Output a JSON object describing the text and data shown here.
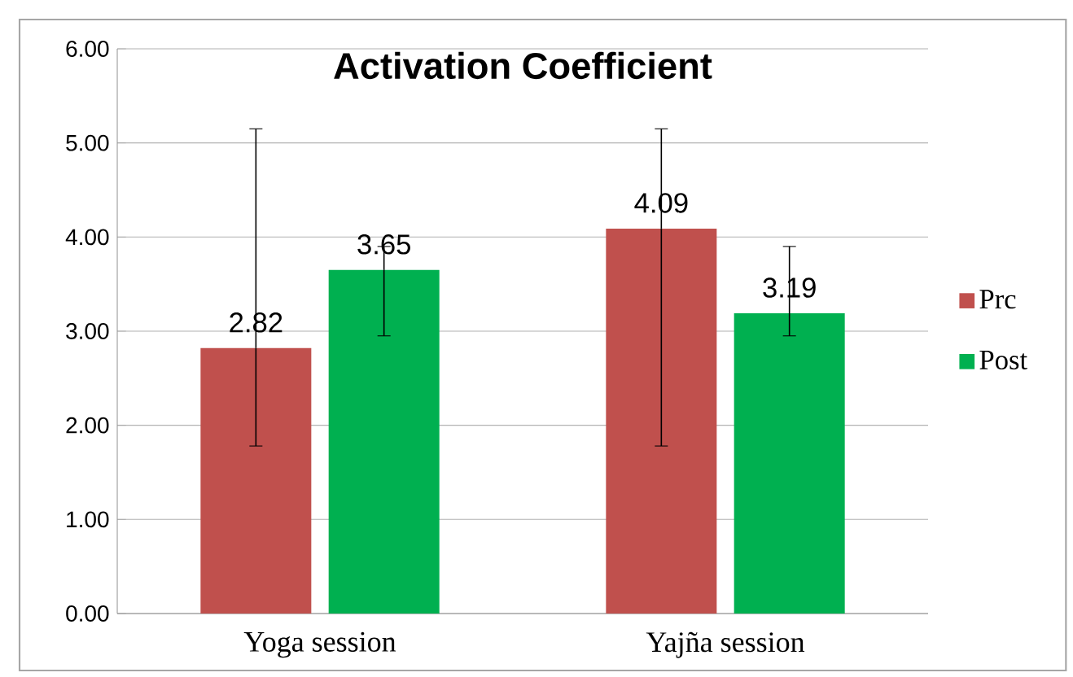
{
  "chart_data": {
    "type": "bar",
    "title": "Activation Coefficient",
    "categories": [
      "Yoga session",
      "Yajña session"
    ],
    "series": [
      {
        "name": "Prc",
        "color": "#c0504d",
        "values": [
          2.82,
          4.09
        ],
        "errors": [
          [
            1.78,
            5.15
          ],
          [
            1.78,
            5.15
          ]
        ]
      },
      {
        "name": "Post",
        "color": "#00b050",
        "values": [
          3.65,
          3.19
        ],
        "errors": [
          [
            2.95,
            3.9
          ],
          [
            2.95,
            3.9
          ]
        ]
      }
    ],
    "ylim": [
      0,
      6
    ],
    "yticks": [
      {
        "value": 0,
        "label": "0.00"
      },
      {
        "value": 1,
        "label": "1.00"
      },
      {
        "value": 2,
        "label": "2.00"
      },
      {
        "value": 3,
        "label": "3.00"
      },
      {
        "value": 4,
        "label": "4.00"
      },
      {
        "value": 5,
        "label": "5.00"
      },
      {
        "value": 6,
        "label": "6.00"
      }
    ],
    "grid": "y",
    "legend": "right",
    "data_labels": true
  }
}
